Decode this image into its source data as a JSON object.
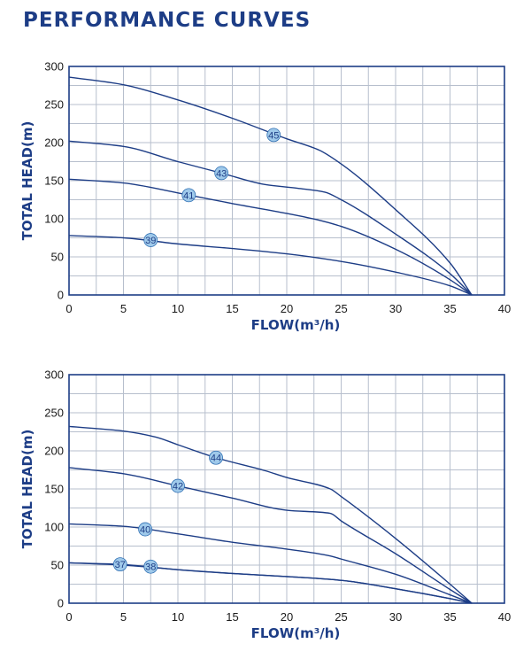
{
  "page_title": "PERFORMANCE CURVES",
  "chart_data": [
    {
      "type": "line",
      "title": "",
      "xlabel": "FLOW(m³/h)",
      "ylabel": "TOTAL HEAD(m)",
      "xlim": [
        0,
        40
      ],
      "ylim": [
        0,
        300
      ],
      "xticks": [
        0,
        5,
        10,
        15,
        20,
        25,
        30,
        35,
        40
      ],
      "yticks": [
        0,
        50,
        100,
        150,
        200,
        250,
        300
      ],
      "grid": true,
      "series": [
        {
          "name": "45",
          "label_at": [
            18.8,
            210
          ],
          "points": [
            [
              0,
              286
            ],
            [
              5,
              276
            ],
            [
              10,
              256
            ],
            [
              15,
              232
            ],
            [
              20,
              205
            ],
            [
              23,
              190
            ],
            [
              25,
              172
            ],
            [
              30,
              112
            ],
            [
              35,
              42
            ],
            [
              37,
              0
            ]
          ]
        },
        {
          "name": "43",
          "label_at": [
            14,
            160
          ],
          "points": [
            [
              0,
              202
            ],
            [
              5,
              195
            ],
            [
              10,
              175
            ],
            [
              14,
              160
            ],
            [
              18,
              145
            ],
            [
              21,
              140
            ],
            [
              23.5,
              135
            ],
            [
              25,
              125
            ],
            [
              30,
              80
            ],
            [
              35,
              28
            ],
            [
              37,
              0
            ]
          ]
        },
        {
          "name": "41",
          "label_at": [
            11,
            131
          ],
          "points": [
            [
              0,
              152
            ],
            [
              5,
              147
            ],
            [
              10,
              134
            ],
            [
              15,
              120
            ],
            [
              20,
              107
            ],
            [
              23,
              98
            ],
            [
              25,
              90
            ],
            [
              30,
              60
            ],
            [
              35,
              20
            ],
            [
              37,
              0
            ]
          ]
        },
        {
          "name": "39",
          "label_at": [
            7.5,
            72
          ],
          "points": [
            [
              0,
              78
            ],
            [
              5,
              75
            ],
            [
              10,
              67
            ],
            [
              15,
              61
            ],
            [
              20,
              54
            ],
            [
              25,
              44
            ],
            [
              30,
              30
            ],
            [
              35,
              12
            ],
            [
              37,
              0
            ]
          ]
        }
      ]
    },
    {
      "type": "line",
      "title": "",
      "xlabel": "FLOW(m³/h)",
      "ylabel": "TOTAL HEAD(m)",
      "xlim": [
        0,
        40
      ],
      "ylim": [
        0,
        300
      ],
      "xticks": [
        0,
        5,
        10,
        15,
        20,
        25,
        30,
        35,
        40
      ],
      "yticks": [
        0,
        50,
        100,
        150,
        200,
        250,
        300
      ],
      "grid": true,
      "series": [
        {
          "name": "44",
          "label_at": [
            13.5,
            191
          ],
          "points": [
            [
              0,
              232
            ],
            [
              5,
              226
            ],
            [
              8,
              218
            ],
            [
              10,
              208
            ],
            [
              13.5,
              191
            ],
            [
              18,
              174
            ],
            [
              20,
              165
            ],
            [
              24,
              150
            ],
            [
              25,
              140
            ],
            [
              30,
              85
            ],
            [
              35,
              25
            ],
            [
              37,
              0
            ]
          ]
        },
        {
          "name": "42",
          "label_at": [
            10,
            154
          ],
          "points": [
            [
              0,
              178
            ],
            [
              5,
              170
            ],
            [
              10,
              154
            ],
            [
              15,
              138
            ],
            [
              20,
              122
            ],
            [
              24,
              118
            ],
            [
              25,
              108
            ],
            [
              30,
              65
            ],
            [
              35,
              18
            ],
            [
              37,
              0
            ]
          ]
        },
        {
          "name": "40",
          "label_at": [
            7,
            97
          ],
          "points": [
            [
              0,
              104
            ],
            [
              5,
              101
            ],
            [
              10,
              91
            ],
            [
              15,
              80
            ],
            [
              20,
              71
            ],
            [
              24,
              62
            ],
            [
              25,
              58
            ],
            [
              30,
              38
            ],
            [
              35,
              11
            ],
            [
              37,
              0
            ]
          ]
        },
        {
          "name": "38",
          "label_at": [
            7.5,
            48
          ],
          "points": [
            [
              0,
              53
            ],
            [
              5,
              50
            ],
            [
              10,
              44
            ],
            [
              15,
              39
            ],
            [
              20,
              35
            ],
            [
              25,
              30
            ],
            [
              30,
              19
            ],
            [
              35,
              6
            ],
            [
              37,
              0
            ]
          ]
        },
        {
          "name": "37",
          "label_at": [
            4.7,
            51
          ],
          "points": [
            [
              0,
              53
            ],
            [
              4.7,
              51
            ],
            [
              10,
              44
            ],
            [
              15,
              39
            ],
            [
              20,
              35
            ],
            [
              25,
              30
            ],
            [
              30,
              19
            ],
            [
              35,
              6
            ],
            [
              37,
              0
            ]
          ]
        }
      ]
    }
  ]
}
